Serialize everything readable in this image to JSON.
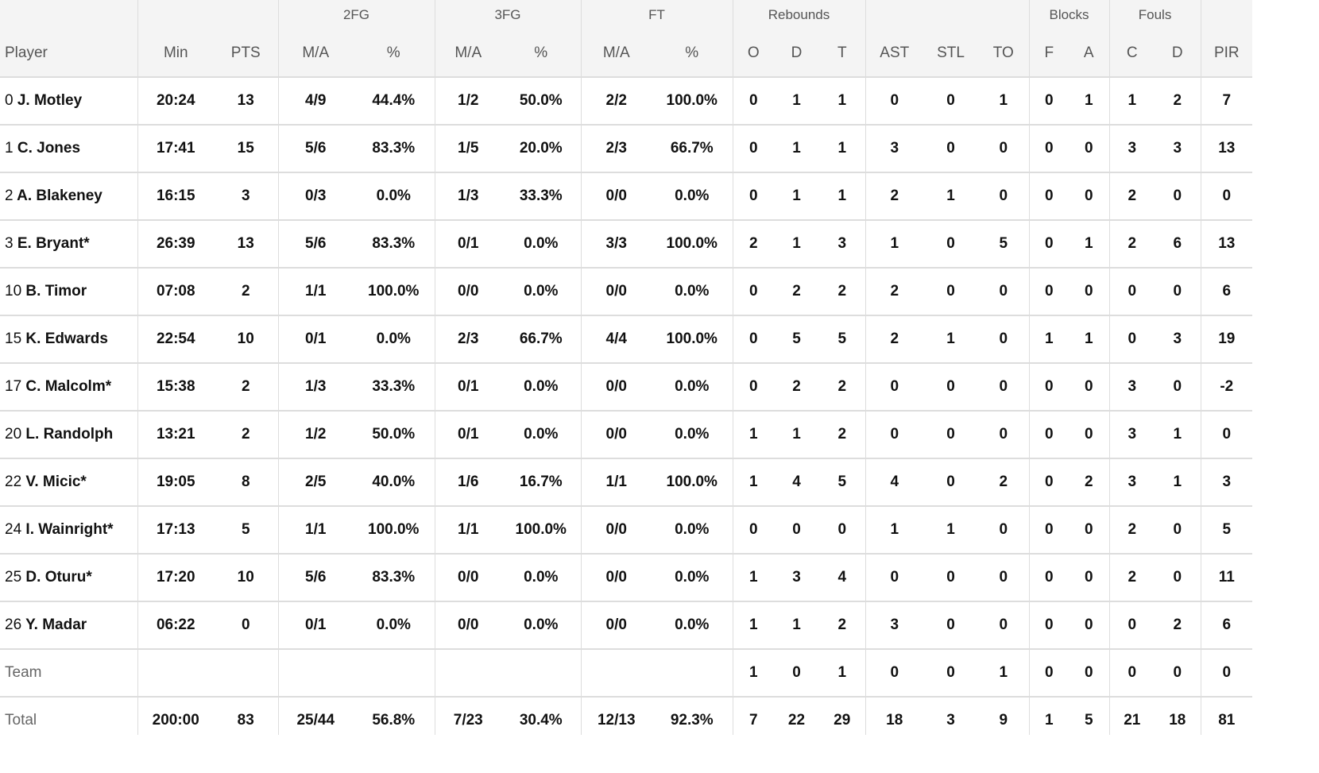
{
  "groups": [
    "",
    "",
    "2FG",
    "3FG",
    "FT",
    "Rebounds",
    "",
    "Blocks",
    "Fouls",
    ""
  ],
  "columns": [
    "Player",
    "Min",
    "PTS",
    "M/A",
    "%",
    "M/A",
    "%",
    "M/A",
    "%",
    "O",
    "D",
    "T",
    "AST",
    "STL",
    "TO",
    "F",
    "A",
    "C",
    "D",
    "PIR"
  ],
  "players": [
    {
      "num": "0",
      "name": "J. Motley",
      "stats": [
        "20:24",
        "13",
        "4/9",
        "44.4%",
        "1/2",
        "50.0%",
        "2/2",
        "100.0%",
        "0",
        "1",
        "1",
        "0",
        "0",
        "1",
        "0",
        "1",
        "1",
        "2",
        "7"
      ]
    },
    {
      "num": "1",
      "name": "C. Jones",
      "stats": [
        "17:41",
        "15",
        "5/6",
        "83.3%",
        "1/5",
        "20.0%",
        "2/3",
        "66.7%",
        "0",
        "1",
        "1",
        "3",
        "0",
        "0",
        "0",
        "0",
        "3",
        "3",
        "13"
      ]
    },
    {
      "num": "2",
      "name": "A. Blakeney",
      "stats": [
        "16:15",
        "3",
        "0/3",
        "0.0%",
        "1/3",
        "33.3%",
        "0/0",
        "0.0%",
        "0",
        "1",
        "1",
        "2",
        "1",
        "0",
        "0",
        "0",
        "2",
        "0",
        "0"
      ]
    },
    {
      "num": "3",
      "name": "E. Bryant*",
      "stats": [
        "26:39",
        "13",
        "5/6",
        "83.3%",
        "0/1",
        "0.0%",
        "3/3",
        "100.0%",
        "2",
        "1",
        "3",
        "1",
        "0",
        "5",
        "0",
        "1",
        "2",
        "6",
        "13"
      ]
    },
    {
      "num": "10",
      "name": "B. Timor",
      "stats": [
        "07:08",
        "2",
        "1/1",
        "100.0%",
        "0/0",
        "0.0%",
        "0/0",
        "0.0%",
        "0",
        "2",
        "2",
        "2",
        "0",
        "0",
        "0",
        "0",
        "0",
        "0",
        "6"
      ]
    },
    {
      "num": "15",
      "name": "K. Edwards",
      "stats": [
        "22:54",
        "10",
        "0/1",
        "0.0%",
        "2/3",
        "66.7%",
        "4/4",
        "100.0%",
        "0",
        "5",
        "5",
        "2",
        "1",
        "0",
        "1",
        "1",
        "0",
        "3",
        "19"
      ]
    },
    {
      "num": "17",
      "name": "C. Malcolm*",
      "stats": [
        "15:38",
        "2",
        "1/3",
        "33.3%",
        "0/1",
        "0.0%",
        "0/0",
        "0.0%",
        "0",
        "2",
        "2",
        "0",
        "0",
        "0",
        "0",
        "0",
        "3",
        "0",
        "-2"
      ]
    },
    {
      "num": "20",
      "name": "L. Randolph",
      "stats": [
        "13:21",
        "2",
        "1/2",
        "50.0%",
        "0/1",
        "0.0%",
        "0/0",
        "0.0%",
        "1",
        "1",
        "2",
        "0",
        "0",
        "0",
        "0",
        "0",
        "3",
        "1",
        "0"
      ]
    },
    {
      "num": "22",
      "name": "V. Micic*",
      "stats": [
        "19:05",
        "8",
        "2/5",
        "40.0%",
        "1/6",
        "16.7%",
        "1/1",
        "100.0%",
        "1",
        "4",
        "5",
        "4",
        "0",
        "2",
        "0",
        "2",
        "3",
        "1",
        "3"
      ]
    },
    {
      "num": "24",
      "name": "I. Wainright*",
      "stats": [
        "17:13",
        "5",
        "1/1",
        "100.0%",
        "1/1",
        "100.0%",
        "0/0",
        "0.0%",
        "0",
        "0",
        "0",
        "1",
        "1",
        "0",
        "0",
        "0",
        "2",
        "0",
        "5"
      ]
    },
    {
      "num": "25",
      "name": "D. Oturu*",
      "stats": [
        "17:20",
        "10",
        "5/6",
        "83.3%",
        "0/0",
        "0.0%",
        "0/0",
        "0.0%",
        "1",
        "3",
        "4",
        "0",
        "0",
        "0",
        "0",
        "0",
        "2",
        "0",
        "11"
      ]
    },
    {
      "num": "26",
      "name": "Y. Madar",
      "stats": [
        "06:22",
        "0",
        "0/1",
        "0.0%",
        "0/0",
        "0.0%",
        "0/0",
        "0.0%",
        "1",
        "1",
        "2",
        "3",
        "0",
        "0",
        "0",
        "0",
        "0",
        "2",
        "6"
      ]
    }
  ],
  "team": {
    "label": "Team",
    "stats": [
      "",
      "",
      "",
      "",
      "",
      "",
      "",
      "",
      "1",
      "0",
      "1",
      "0",
      "0",
      "1",
      "0",
      "0",
      "0",
      "0",
      "0"
    ]
  },
  "total": {
    "label": "Total",
    "stats": [
      "200:00",
      "83",
      "25/44",
      "56.8%",
      "7/23",
      "30.4%",
      "12/13",
      "92.3%",
      "7",
      "22",
      "29",
      "18",
      "3",
      "9",
      "1",
      "5",
      "21",
      "18",
      "81"
    ]
  }
}
